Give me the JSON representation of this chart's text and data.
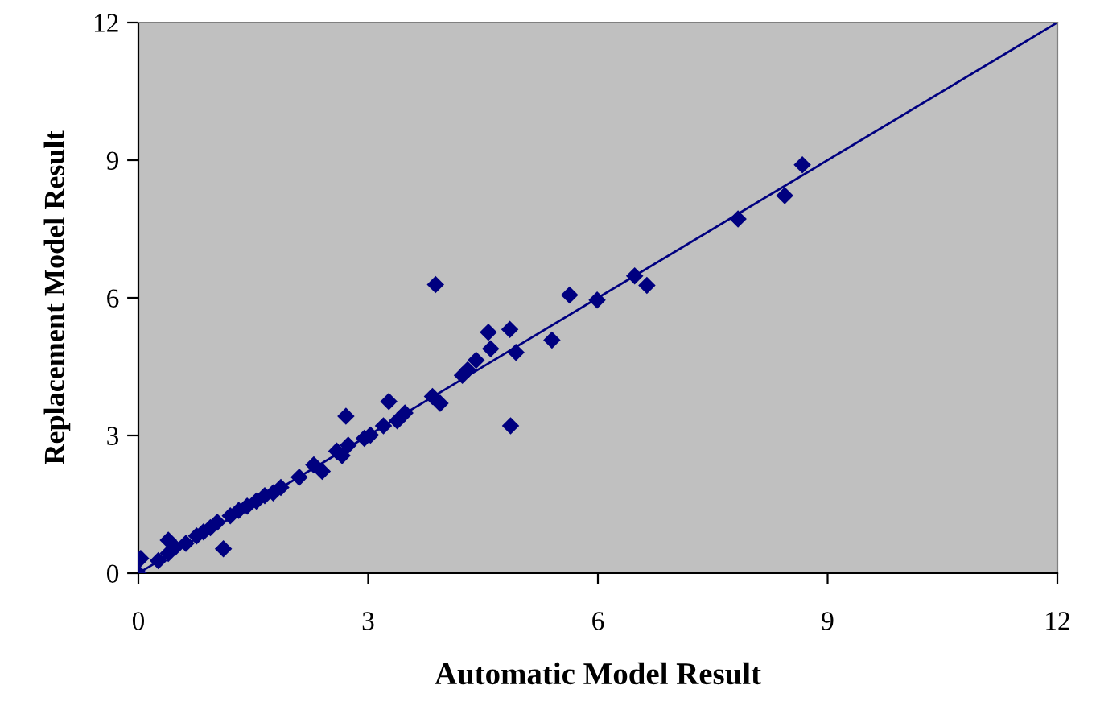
{
  "chart_data": {
    "type": "scatter",
    "xlabel": "Automatic Model Result",
    "ylabel": "Replacement Model Result",
    "xlim": [
      0,
      12
    ],
    "ylim": [
      0,
      12
    ],
    "xticks": [
      0,
      3,
      6,
      9,
      12
    ],
    "yticks": [
      0,
      3,
      6,
      9,
      12
    ],
    "grid": false,
    "legend": false,
    "series": [
      {
        "color": "#000080",
        "marker": "diamond",
        "x": [
          8.67,
          8.44,
          7.83,
          6.48,
          6.64,
          5.99,
          5.63,
          5.4,
          4.85,
          4.93,
          4.57,
          4.6,
          4.86,
          3.88,
          4.41,
          4.3,
          4.23,
          3.84,
          3.94,
          3.48,
          3.38,
          3.27,
          3.2,
          3.03,
          2.95,
          2.71,
          2.74,
          2.66,
          2.59,
          2.4,
          2.29,
          2.1,
          1.86,
          1.76,
          1.65,
          1.54,
          1.42,
          1.31,
          1.2,
          1.11,
          1.03,
          0.94,
          0.85,
          0.76,
          0.62,
          0.48,
          0.39,
          0.39,
          0.26,
          0.03,
          0
        ],
        "values": [
          8.9,
          8.23,
          7.72,
          6.48,
          6.27,
          5.95,
          6.06,
          5.08,
          5.31,
          4.81,
          5.25,
          4.89,
          3.21,
          6.29,
          4.64,
          4.43,
          4.31,
          3.85,
          3.7,
          3.49,
          3.32,
          3.74,
          3.21,
          3.01,
          2.94,
          3.42,
          2.79,
          2.56,
          2.66,
          2.22,
          2.36,
          2.09,
          1.87,
          1.75,
          1.69,
          1.57,
          1.46,
          1.37,
          1.25,
          0.53,
          1.11,
          0.99,
          0.9,
          0.81,
          0.65,
          0.56,
          0.72,
          0.43,
          0.27,
          0.32,
          0
        ]
      },
      {
        "type": "line",
        "color": "#000080",
        "marker": "none",
        "line_style": "solid",
        "x": [
          0,
          12
        ],
        "values": [
          0,
          12
        ]
      }
    ]
  }
}
